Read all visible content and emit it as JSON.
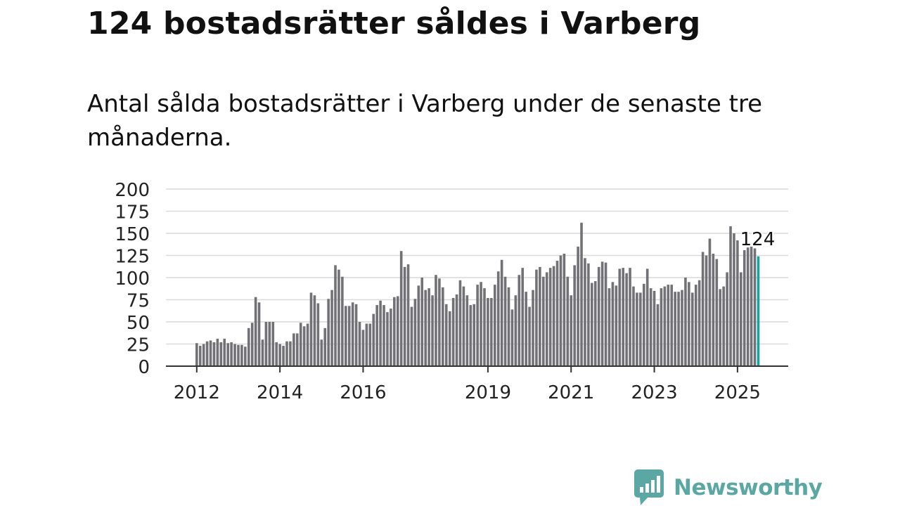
{
  "title": "124 bostadsrätter såldes i Varberg",
  "subtitle": "Antal sålda bostadsrätter i Varberg under de senaste tre månaderna.",
  "brand": {
    "name": "Newsworthy",
    "color": "#5aa7a3",
    "icon": "newsworthy-chart-bubble-icon"
  },
  "colors": {
    "bar": "#727176",
    "highlight": "#17a2a2",
    "grid": "#d9d9d9",
    "axis": "#333333",
    "text": "#222222"
  },
  "chart_data": {
    "type": "bar",
    "ylim": [
      0,
      200
    ],
    "yticks": [
      0,
      25,
      50,
      75,
      100,
      125,
      150,
      175,
      200
    ],
    "ytick_labels": [
      "0",
      "25",
      "50",
      "75",
      "100",
      "125",
      "150",
      "175",
      "200"
    ],
    "xtick_labels": [
      {
        "label": "2012",
        "index": 0
      },
      {
        "label": "2014",
        "index": 24
      },
      {
        "label": "2016",
        "index": 48
      },
      {
        "label": "2019",
        "index": 84
      },
      {
        "label": "2021",
        "index": 108
      },
      {
        "label": "2023",
        "index": 132
      },
      {
        "label": "2025",
        "index": 156
      }
    ],
    "grid": true,
    "highlight_label": "124",
    "values": [
      26,
      23,
      25,
      28,
      29,
      27,
      31,
      27,
      31,
      26,
      27,
      25,
      24,
      24,
      22,
      43,
      49,
      78,
      72,
      30,
      50,
      50,
      50,
      27,
      25,
      23,
      28,
      28,
      37,
      37,
      49,
      45,
      48,
      83,
      80,
      71,
      30,
      43,
      76,
      86,
      114,
      109,
      101,
      68,
      68,
      72,
      70,
      50,
      41,
      48,
      48,
      59,
      69,
      74,
      69,
      61,
      65,
      78,
      79,
      130,
      112,
      115,
      67,
      76,
      91,
      100,
      86,
      88,
      80,
      103,
      99,
      89,
      70,
      62,
      77,
      81,
      97,
      90,
      80,
      69,
      70,
      92,
      95,
      88,
      77,
      77,
      92,
      107,
      120,
      101,
      89,
      64,
      80,
      103,
      111,
      84,
      67,
      86,
      109,
      112,
      101,
      106,
      111,
      113,
      119,
      125,
      127,
      101,
      80,
      114,
      135,
      162,
      122,
      116,
      94,
      96,
      112,
      118,
      117,
      88,
      95,
      91,
      110,
      111,
      105,
      111,
      90,
      83,
      83,
      93,
      110,
      88,
      85,
      70,
      88,
      90,
      92,
      92,
      84,
      84,
      86,
      100,
      95,
      83,
      92,
      97,
      129,
      125,
      144,
      127,
      121,
      87,
      90,
      106,
      158,
      150,
      142,
      106,
      131,
      134,
      135,
      133,
      124
    ]
  }
}
